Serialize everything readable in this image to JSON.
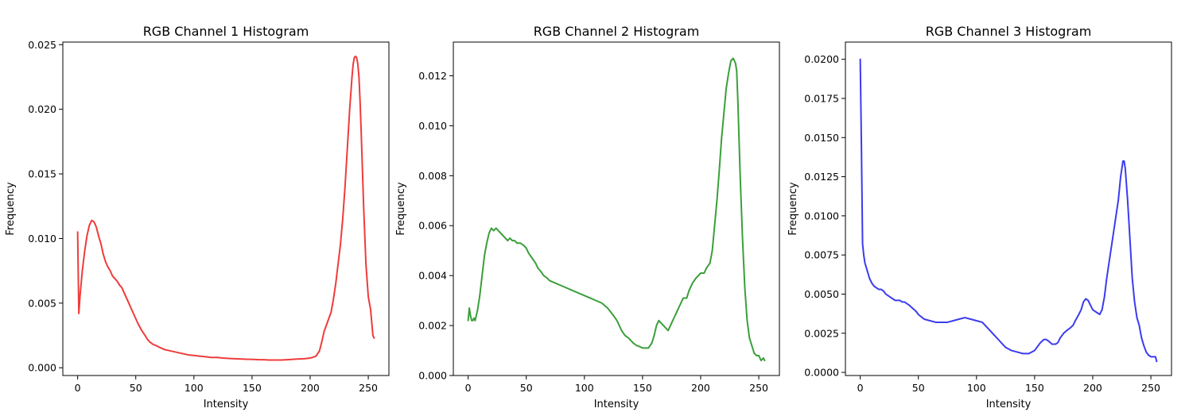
{
  "chart_data": [
    {
      "type": "line",
      "title": "RGB Channel 1 Histogram",
      "xlabel": "Intensity",
      "ylabel": "Frequency",
      "xlim": [
        -12.75,
        267.75
      ],
      "ylim": [
        -0.0006,
        0.0252
      ],
      "xticks": [
        0,
        50,
        100,
        150,
        200,
        250
      ],
      "xtick_labels": [
        "0",
        "50",
        "100",
        "150",
        "200",
        "250"
      ],
      "yticks": [
        0.0,
        0.005,
        0.01,
        0.015,
        0.02,
        0.025
      ],
      "ytick_labels": [
        "0.000",
        "0.005",
        "0.010",
        "0.015",
        "0.020",
        "0.025"
      ],
      "grid": false,
      "series": [
        {
          "color": "#ef3b3b",
          "x": [
            0,
            1,
            2,
            4,
            6,
            8,
            10,
            12,
            14,
            16,
            18,
            20,
            22,
            24,
            26,
            28,
            30,
            32,
            34,
            36,
            38,
            40,
            42,
            44,
            46,
            48,
            50,
            52,
            55,
            58,
            60,
            62,
            65,
            68,
            70,
            75,
            80,
            85,
            90,
            95,
            100,
            105,
            110,
            115,
            120,
            125,
            130,
            135,
            140,
            145,
            150,
            155,
            160,
            165,
            170,
            175,
            180,
            185,
            190,
            195,
            200,
            202,
            205,
            208,
            210,
            212,
            214,
            216,
            218,
            220,
            222,
            224,
            226,
            228,
            230,
            232,
            234,
            236,
            237,
            238,
            239,
            240,
            241,
            242,
            243,
            244,
            246,
            248,
            250,
            252,
            254,
            255
          ],
          "y": [
            0.0105,
            0.0042,
            0.0055,
            0.0075,
            0.009,
            0.0102,
            0.011,
            0.0114,
            0.0113,
            0.0109,
            0.0102,
            0.0096,
            0.0088,
            0.0082,
            0.0078,
            0.0075,
            0.0071,
            0.0069,
            0.0067,
            0.0064,
            0.0062,
            0.0058,
            0.0054,
            0.005,
            0.0046,
            0.0042,
            0.0038,
            0.0034,
            0.0029,
            0.0025,
            0.0022,
            0.002,
            0.0018,
            0.0017,
            0.0016,
            0.0014,
            0.0013,
            0.0012,
            0.0011,
            0.001,
            0.00095,
            0.0009,
            0.00085,
            0.0008,
            0.0008,
            0.00075,
            0.00072,
            0.0007,
            0.00068,
            0.00066,
            0.00065,
            0.00063,
            0.00062,
            0.0006,
            0.0006,
            0.0006,
            0.00062,
            0.00065,
            0.00068,
            0.0007,
            0.00075,
            0.0008,
            0.0009,
            0.0013,
            0.002,
            0.0028,
            0.0033,
            0.0038,
            0.0043,
            0.0053,
            0.0065,
            0.008,
            0.0095,
            0.0115,
            0.014,
            0.017,
            0.02,
            0.0225,
            0.0235,
            0.024,
            0.0241,
            0.024,
            0.0235,
            0.0225,
            0.0205,
            0.018,
            0.0125,
            0.008,
            0.0055,
            0.0045,
            0.0025,
            0.0023
          ]
        }
      ]
    },
    {
      "type": "line",
      "title": "RGB Channel 2 Histogram",
      "xlabel": "Intensity",
      "ylabel": "Frequency",
      "xlim": [
        -12.75,
        267.75
      ],
      "ylim": [
        0.0,
        0.01335
      ],
      "xticks": [
        0,
        50,
        100,
        150,
        200,
        250
      ],
      "xtick_labels": [
        "0",
        "50",
        "100",
        "150",
        "200",
        "250"
      ],
      "yticks": [
        0.0,
        0.002,
        0.004,
        0.006,
        0.008,
        0.01,
        0.012
      ],
      "ytick_labels": [
        "0.000",
        "0.002",
        "0.004",
        "0.006",
        "0.008",
        "0.010",
        "0.012"
      ],
      "grid": false,
      "series": [
        {
          "color": "#3a9f3a",
          "x": [
            0,
            1,
            2,
            3,
            4,
            5,
            6,
            8,
            10,
            12,
            14,
            16,
            18,
            20,
            22,
            24,
            26,
            28,
            30,
            32,
            34,
            36,
            38,
            40,
            42,
            45,
            48,
            50,
            52,
            55,
            58,
            60,
            62,
            65,
            68,
            70,
            75,
            80,
            85,
            90,
            95,
            100,
            105,
            110,
            115,
            120,
            125,
            128,
            130,
            132,
            135,
            138,
            140,
            142,
            145,
            148,
            150,
            152,
            155,
            158,
            160,
            162,
            164,
            166,
            168,
            170,
            172,
            175,
            178,
            180,
            183,
            185,
            188,
            190,
            193,
            196,
            198,
            200,
            203,
            205,
            208,
            210,
            212,
            214,
            216,
            218,
            220,
            222,
            224,
            226,
            228,
            230,
            231,
            232,
            233,
            234,
            236,
            238,
            240,
            242,
            244,
            246,
            248,
            250,
            252,
            254,
            255
          ],
          "y": [
            0.0022,
            0.0027,
            0.0024,
            0.0022,
            0.0022,
            0.0023,
            0.0022,
            0.0026,
            0.0032,
            0.004,
            0.0048,
            0.0053,
            0.0057,
            0.0059,
            0.0058,
            0.0059,
            0.0058,
            0.0057,
            0.0056,
            0.0055,
            0.0054,
            0.0055,
            0.0054,
            0.0054,
            0.0053,
            0.0053,
            0.0052,
            0.0051,
            0.0049,
            0.0047,
            0.0045,
            0.0043,
            0.0042,
            0.004,
            0.0039,
            0.0038,
            0.0037,
            0.0036,
            0.0035,
            0.0034,
            0.0033,
            0.0032,
            0.0031,
            0.003,
            0.0029,
            0.0027,
            0.0024,
            0.0022,
            0.002,
            0.0018,
            0.0016,
            0.0015,
            0.0014,
            0.0013,
            0.0012,
            0.00115,
            0.0011,
            0.0011,
            0.0011,
            0.0013,
            0.0016,
            0.002,
            0.0022,
            0.0021,
            0.002,
            0.0019,
            0.0018,
            0.0021,
            0.0024,
            0.0026,
            0.0029,
            0.0031,
            0.0031,
            0.0034,
            0.0037,
            0.0039,
            0.004,
            0.0041,
            0.0041,
            0.0043,
            0.0045,
            0.005,
            0.006,
            0.007,
            0.0082,
            0.0095,
            0.0105,
            0.0115,
            0.0121,
            0.0126,
            0.0127,
            0.0125,
            0.0122,
            0.011,
            0.0095,
            0.008,
            0.0055,
            0.0035,
            0.0022,
            0.0015,
            0.0012,
            0.0009,
            0.0008,
            0.0008,
            0.0006,
            0.0007,
            0.0006
          ]
        }
      ]
    },
    {
      "type": "line",
      "title": "RGB Channel 3 Histogram",
      "xlabel": "Intensity",
      "ylabel": "Frequency",
      "xlim": [
        -12.75,
        267.75
      ],
      "ylim": [
        -0.0002,
        0.0211
      ],
      "xticks": [
        0,
        50,
        100,
        150,
        200,
        250
      ],
      "xtick_labels": [
        "0",
        "50",
        "100",
        "150",
        "200",
        "250"
      ],
      "yticks": [
        0.0,
        0.0025,
        0.005,
        0.0075,
        0.01,
        0.0125,
        0.015,
        0.0175,
        0.02
      ],
      "ytick_labels": [
        "0.0000",
        "0.0025",
        "0.0050",
        "0.0075",
        "0.0100",
        "0.0125",
        "0.0150",
        "0.0175",
        "0.0200"
      ],
      "grid": false,
      "series": [
        {
          "color": "#3b3bef",
          "x": [
            0,
            1,
            2,
            3,
            4,
            6,
            8,
            10,
            12,
            14,
            16,
            18,
            20,
            22,
            24,
            26,
            28,
            30,
            32,
            34,
            36,
            38,
            40,
            42,
            45,
            48,
            50,
            55,
            60,
            65,
            70,
            75,
            80,
            85,
            90,
            95,
            100,
            105,
            110,
            115,
            120,
            125,
            130,
            135,
            140,
            145,
            150,
            153,
            155,
            158,
            160,
            162,
            165,
            168,
            170,
            172,
            175,
            178,
            180,
            183,
            185,
            188,
            190,
            192,
            194,
            196,
            198,
            200,
            202,
            204,
            206,
            208,
            210,
            212,
            214,
            216,
            218,
            220,
            222,
            224,
            225,
            226,
            227,
            228,
            229,
            230,
            232,
            234,
            236,
            238,
            240,
            242,
            244,
            246,
            248,
            250,
            252,
            254,
            255
          ],
          "y": [
            0.02,
            0.0145,
            0.0082,
            0.0075,
            0.007,
            0.0065,
            0.006,
            0.0057,
            0.0055,
            0.0054,
            0.0053,
            0.0053,
            0.0052,
            0.005,
            0.0049,
            0.0048,
            0.0047,
            0.0046,
            0.0046,
            0.0046,
            0.0045,
            0.0045,
            0.0044,
            0.0043,
            0.0041,
            0.0039,
            0.0037,
            0.0034,
            0.0033,
            0.0032,
            0.0032,
            0.0032,
            0.0033,
            0.0034,
            0.0035,
            0.0034,
            0.0033,
            0.0032,
            0.0028,
            0.0024,
            0.002,
            0.0016,
            0.0014,
            0.0013,
            0.0012,
            0.0012,
            0.0014,
            0.0017,
            0.0019,
            0.0021,
            0.0021,
            0.002,
            0.0018,
            0.0018,
            0.0019,
            0.0022,
            0.0025,
            0.0027,
            0.0028,
            0.003,
            0.0033,
            0.0037,
            0.004,
            0.0045,
            0.0047,
            0.0046,
            0.0043,
            0.004,
            0.0039,
            0.0038,
            0.0037,
            0.004,
            0.0048,
            0.006,
            0.007,
            0.008,
            0.009,
            0.01,
            0.011,
            0.0125,
            0.013,
            0.0135,
            0.0135,
            0.013,
            0.012,
            0.011,
            0.0085,
            0.006,
            0.0045,
            0.0035,
            0.003,
            0.0022,
            0.0017,
            0.0013,
            0.0011,
            0.001,
            0.001,
            0.001,
            0.0007
          ]
        }
      ]
    }
  ]
}
